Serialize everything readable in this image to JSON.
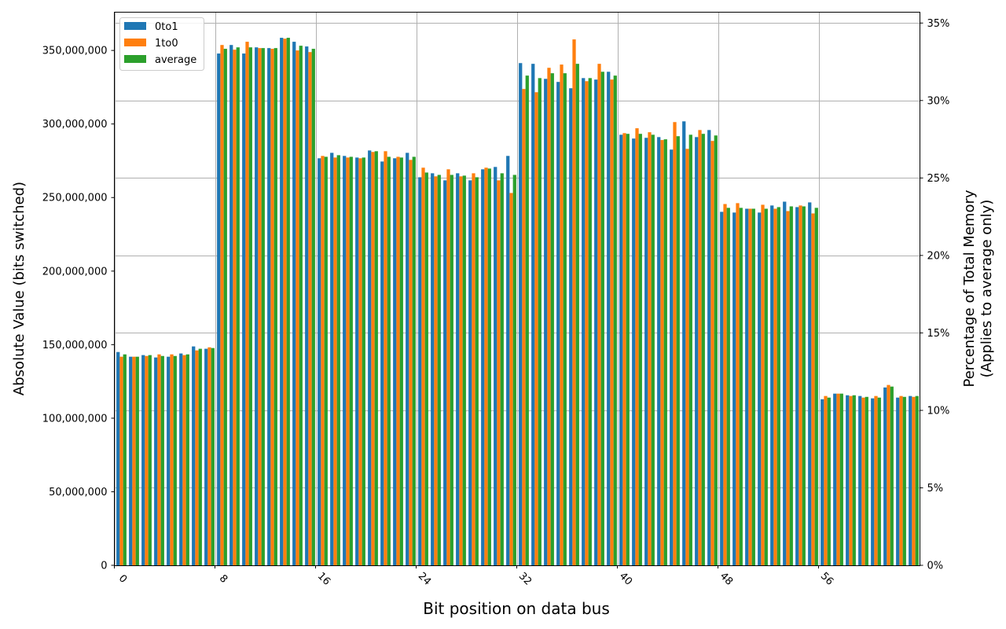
{
  "chart_data": {
    "type": "bar",
    "title": "",
    "xlabel": "Bit position on data bus",
    "ylabel": "Absolute Value (bits switched)",
    "ylabel_right": [
      "Percentage of Total Memory",
      "(Applies to average only)"
    ],
    "ylim": [
      0,
      376000000
    ],
    "ylim_right_pct": [
      0,
      35.7
    ],
    "grid": true,
    "legend_position": "upper left",
    "x_ticks": [
      0,
      8,
      16,
      24,
      32,
      40,
      48,
      56
    ],
    "y_ticks": [
      {
        "value": 0,
        "label": "0"
      },
      {
        "value": 50000000,
        "label": "50,000,000"
      },
      {
        "value": 100000000,
        "label": "100,000,000"
      },
      {
        "value": 150000000,
        "label": "150,000,000"
      },
      {
        "value": 200000000,
        "label": "200,000,000"
      },
      {
        "value": 250000000,
        "label": "250,000,000"
      },
      {
        "value": 300000000,
        "label": "300,000,000"
      },
      {
        "value": 350000000,
        "label": "350,000,000"
      }
    ],
    "y_ticks_right": [
      {
        "value": 0,
        "label": "0%"
      },
      {
        "value": 5,
        "label": "5%"
      },
      {
        "value": 10,
        "label": "10%"
      },
      {
        "value": 15,
        "label": "15%"
      },
      {
        "value": 20,
        "label": "20%"
      },
      {
        "value": 25,
        "label": "25%"
      },
      {
        "value": 30,
        "label": "30%"
      },
      {
        "value": 35,
        "label": "35%"
      }
    ],
    "categories": [
      0,
      1,
      2,
      3,
      4,
      5,
      6,
      7,
      8,
      9,
      10,
      11,
      12,
      13,
      14,
      15,
      16,
      17,
      18,
      19,
      20,
      21,
      22,
      23,
      24,
      25,
      26,
      27,
      28,
      29,
      30,
      31,
      32,
      33,
      34,
      35,
      36,
      37,
      38,
      39,
      40,
      41,
      42,
      43,
      44,
      45,
      46,
      47,
      48,
      49,
      50,
      51,
      52,
      53,
      54,
      55,
      56,
      57,
      58,
      59,
      60,
      61,
      62,
      63
    ],
    "series": [
      {
        "name": "0to1",
        "color": "#1f77b4",
        "values": [
          145000000,
          141800000,
          142900000,
          141300000,
          141800000,
          144000000,
          148800000,
          147200000,
          347900000,
          353700000,
          347900000,
          352100000,
          351600000,
          358600000,
          355900000,
          352700000,
          276700000,
          280400000,
          278300000,
          277200000,
          282000000,
          274500000,
          276700000,
          280400000,
          263800000,
          266500000,
          261700000,
          266500000,
          261700000,
          269200000,
          270800000,
          278300000,
          341400000,
          340900000,
          330700000,
          328600000,
          324300000,
          331200000,
          330200000,
          335500000,
          292700000,
          290100000,
          290600000,
          291100000,
          282600000,
          301800000,
          291100000,
          295900000,
          240300000,
          239800000,
          242400000,
          239800000,
          244600000,
          247200000,
          243500000,
          246700000,
          112900000,
          116700000,
          115600000,
          115100000,
          113500000,
          120900000,
          114000000,
          115100000
        ]
      },
      {
        "name": "1to0",
        "color": "#ff7f0e",
        "values": [
          141800000,
          141800000,
          142300000,
          143400000,
          143400000,
          142900000,
          146100000,
          148200000,
          353700000,
          350500000,
          355900000,
          351600000,
          351100000,
          358000000,
          350000000,
          348900000,
          278300000,
          277200000,
          277200000,
          276700000,
          281000000,
          281500000,
          277700000,
          275600000,
          270300000,
          264400000,
          269200000,
          264400000,
          266500000,
          270300000,
          261700000,
          253100000,
          323800000,
          321600000,
          338200000,
          340400000,
          357500000,
          329100000,
          340900000,
          330200000,
          293800000,
          297100000,
          294400000,
          289100000,
          301300000,
          283100000,
          295900000,
          288500000,
          245600000,
          246200000,
          242400000,
          245100000,
          242400000,
          240800000,
          244600000,
          239200000,
          115100000,
          116700000,
          115100000,
          114000000,
          115100000,
          122600000,
          115100000,
          114500000
        ]
      },
      {
        "name": "average",
        "color": "#2ca02c",
        "values": [
          143400000,
          141800000,
          142900000,
          142300000,
          142300000,
          143400000,
          147200000,
          147700000,
          351100000,
          352100000,
          352100000,
          351600000,
          351600000,
          358600000,
          353200000,
          351100000,
          277700000,
          278800000,
          277700000,
          277200000,
          281500000,
          277700000,
          277200000,
          277700000,
          267000000,
          265400000,
          265400000,
          264900000,
          263800000,
          269700000,
          266500000,
          265400000,
          332900000,
          331200000,
          334500000,
          334500000,
          340900000,
          331200000,
          335500000,
          332900000,
          293300000,
          293300000,
          292700000,
          289600000,
          291700000,
          292700000,
          293300000,
          292200000,
          243000000,
          243000000,
          242400000,
          242400000,
          243500000,
          244000000,
          244000000,
          243000000,
          114000000,
          116700000,
          115600000,
          114500000,
          114000000,
          121500000,
          114500000,
          115100000
        ]
      }
    ]
  },
  "legend": {
    "items": [
      {
        "label": "0to1",
        "color": "#1f77b4"
      },
      {
        "label": "1to0",
        "color": "#ff7f0e"
      },
      {
        "label": "average",
        "color": "#2ca02c"
      }
    ]
  }
}
